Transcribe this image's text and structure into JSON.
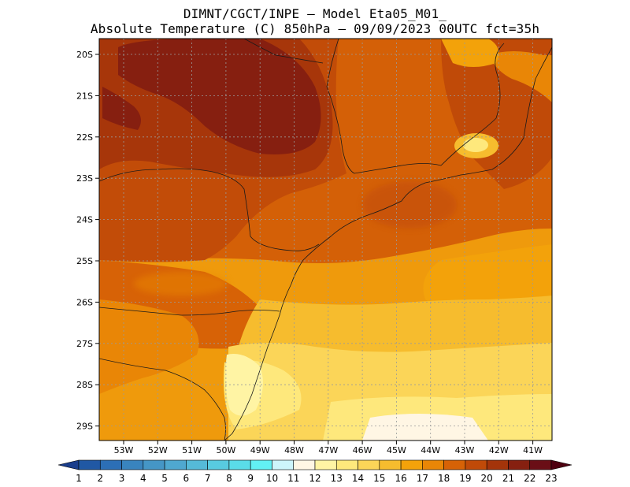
{
  "title": {
    "line1": "DIMNT/CGCT/INPE –  Model Eta05_M01_",
    "line2": "Absolute Temperature (C) 850hPa –  09/09/2023 00UTC fct=35h"
  },
  "map": {
    "lat_labels": [
      "20S",
      "21S",
      "22S",
      "23S",
      "24S",
      "25S",
      "26S",
      "27S",
      "28S",
      "29S"
    ],
    "lon_labels": [
      "53W",
      "52W",
      "51W",
      "50W",
      "49W",
      "48W",
      "47W",
      "46W",
      "45W",
      "44W",
      "43W",
      "42W",
      "41W"
    ]
  },
  "colorbar": {
    "labels": [
      "1",
      "2",
      "3",
      "4",
      "5",
      "6",
      "7",
      "8",
      "9",
      "10",
      "11",
      "12",
      "13",
      "14",
      "15",
      "16",
      "17",
      "18",
      "19",
      "20",
      "21",
      "22",
      "23"
    ],
    "colors": [
      "#1a3e8c",
      "#2058a4",
      "#2c6fb6",
      "#3984be",
      "#4596c6",
      "#4fa8d0",
      "#55bad8",
      "#58cbe0",
      "#5adce8",
      "#62f0f4",
      "#cdf5fb",
      "#fff6e4",
      "#fff4a4",
      "#fee87c",
      "#fbd558",
      "#f6bc2e",
      "#f3a20a",
      "#e98606",
      "#d76206",
      "#c04a08",
      "#a4340a",
      "#862010",
      "#6a0e16",
      "#4e0010"
    ]
  }
}
